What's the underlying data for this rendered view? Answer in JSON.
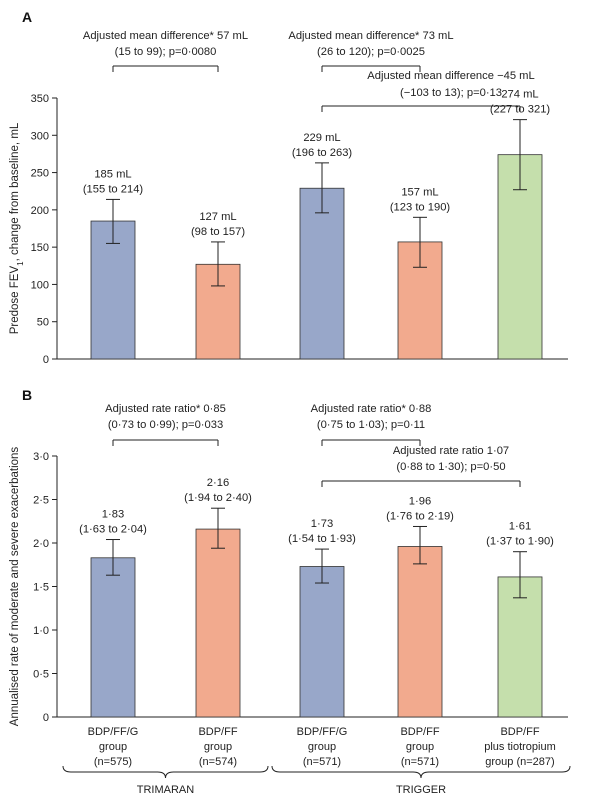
{
  "chart_data": [
    {
      "panel_label": "A",
      "type": "bar",
      "ylabel_main": "Predose FEV",
      "ylabel_sub": "1",
      "ylabel_rest": ", change from baseline, mL",
      "ylim": [
        0,
        350
      ],
      "yticks": [
        0,
        50,
        100,
        150,
        200,
        250,
        300,
        350
      ],
      "ytick_labels": [
        "0",
        "50",
        "100",
        "150",
        "200",
        "250",
        "300",
        "350"
      ],
      "bars": [
        {
          "value": 185,
          "ci": [
            155,
            214
          ],
          "label1": "185 mL",
          "label2": "(155 to 214)",
          "color": "#98a7c9"
        },
        {
          "value": 127,
          "ci": [
            98,
            157
          ],
          "label1": "127 mL",
          "label2": "(98 to 157)",
          "color": "#f2aa8e"
        },
        {
          "value": 229,
          "ci": [
            196,
            263
          ],
          "label1": "229 mL",
          "label2": "(196 to 263)",
          "color": "#98a7c9"
        },
        {
          "value": 157,
          "ci": [
            123,
            190
          ],
          "label1": "157 mL",
          "label2": "(123 to 190)",
          "color": "#f2aa8e"
        },
        {
          "value": 274,
          "ci": [
            227,
            321
          ],
          "label1": "274 mL",
          "label2": "(227 to 321)",
          "color": "#c5dfac"
        }
      ],
      "comparisons": [
        {
          "from": 0,
          "to": 1,
          "line1": "Adjusted mean difference* 57 mL",
          "line2": "(15 to 99); p=0·0080"
        },
        {
          "from": 2,
          "to": 3,
          "line1": "Adjusted mean difference* 73 mL",
          "line2": "(26 to 120); p=0·0025"
        },
        {
          "from": 2,
          "to": 4,
          "line1": "Adjusted mean difference −45 mL",
          "line2": "(−103 to 13); p=0·13"
        }
      ]
    },
    {
      "panel_label": "B",
      "type": "bar",
      "ylabel": "Annualised rate of moderate and severe exacerbations",
      "ylim": [
        0,
        3.0
      ],
      "yticks": [
        0,
        0.5,
        1.0,
        1.5,
        2.0,
        2.5,
        3.0
      ],
      "ytick_labels": [
        "0",
        "0·5",
        "1·0",
        "1·5",
        "2·0",
        "2·5",
        "3·0"
      ],
      "bars": [
        {
          "value": 1.83,
          "ci": [
            1.63,
            2.04
          ],
          "label1": "1·83",
          "label2": "(1·63 to 2·04)",
          "color": "#98a7c9"
        },
        {
          "value": 2.16,
          "ci": [
            1.94,
            2.4
          ],
          "label1": "2·16",
          "label2": "(1·94 to 2·40)",
          "color": "#f2aa8e"
        },
        {
          "value": 1.73,
          "ci": [
            1.54,
            1.93
          ],
          "label1": "1·73",
          "label2": "(1·54 to 1·93)",
          "color": "#98a7c9"
        },
        {
          "value": 1.96,
          "ci": [
            1.76,
            2.19
          ],
          "label1": "1·96",
          "label2": "(1·76 to 2·19)",
          "color": "#f2aa8e"
        },
        {
          "value": 1.61,
          "ci": [
            1.37,
            1.9
          ],
          "label1": "1·61",
          "label2": "(1·37 to 1·90)",
          "color": "#c5dfac"
        }
      ],
      "comparisons": [
        {
          "from": 0,
          "to": 1,
          "line1": "Adjusted rate ratio* 0·85",
          "line2": "(0·73 to 0·99); p=0·033"
        },
        {
          "from": 2,
          "to": 3,
          "line1": "Adjusted rate ratio* 0·88",
          "line2": "(0·75 to 1·03); p=0·11"
        },
        {
          "from": 2,
          "to": 4,
          "line1": "Adjusted rate ratio 1·07",
          "line2": "(0·88 to 1·30); p=0·50"
        }
      ]
    }
  ],
  "categories": [
    [
      "BDP/FF/G",
      "group",
      "(n=575)"
    ],
    [
      "BDP/FF",
      "group",
      "(n=574)"
    ],
    [
      "BDP/FF/G",
      "group",
      "(n=571)"
    ],
    [
      "BDP/FF",
      "group",
      "(n=571)"
    ],
    [
      "BDP/FF",
      "plus tiotropium",
      "group (n=287)"
    ]
  ],
  "studies": [
    {
      "label": "TRIMARAN",
      "from": 0,
      "to": 1
    },
    {
      "label": "TRIGGER",
      "from": 2,
      "to": 4
    }
  ]
}
